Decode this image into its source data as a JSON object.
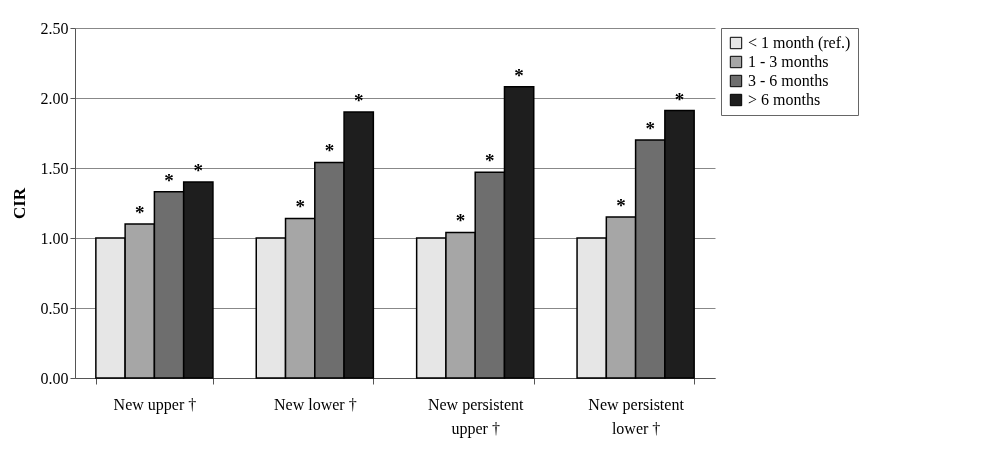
{
  "chart_data": {
    "type": "bar",
    "ylabel": "CIR",
    "categories": [
      "New upper  †",
      "New lower  †",
      "New persistent\nupper †",
      "New persistent\nlower †"
    ],
    "series": [
      {
        "name": "< 1 month (ref.)",
        "color": "#e6e6e6",
        "values": [
          1.0,
          1.0,
          1.0,
          1.0
        ]
      },
      {
        "name": "1 - 3 months",
        "color": "#a6a6a6",
        "values": [
          1.1,
          1.14,
          1.04,
          1.15
        ],
        "value_labels": [
          "*",
          "*",
          "*",
          "*"
        ]
      },
      {
        "name": "3 - 6 months",
        "color": "#6e6e6e",
        "values": [
          1.33,
          1.54,
          1.47,
          1.7
        ],
        "value_labels": [
          "*",
          "*",
          "*",
          "*"
        ]
      },
      {
        "name": "> 6 months",
        "color": "#1e1e1e",
        "values": [
          1.4,
          1.9,
          2.08,
          1.91
        ],
        "value_labels": [
          "*",
          "*",
          "*",
          "*"
        ]
      }
    ],
    "ylim": [
      0,
      2.5
    ],
    "yticks": [
      {
        "value": 0,
        "label": "0.00"
      },
      {
        "value": 0.5,
        "label": "0.50"
      },
      {
        "value": 1,
        "label": "1.00"
      },
      {
        "value": 1.5,
        "label": "1.50"
      },
      {
        "value": 2,
        "label": "2.00"
      },
      {
        "value": 2.5,
        "label": "2.50"
      }
    ],
    "grid": "y",
    "legend": "right"
  }
}
